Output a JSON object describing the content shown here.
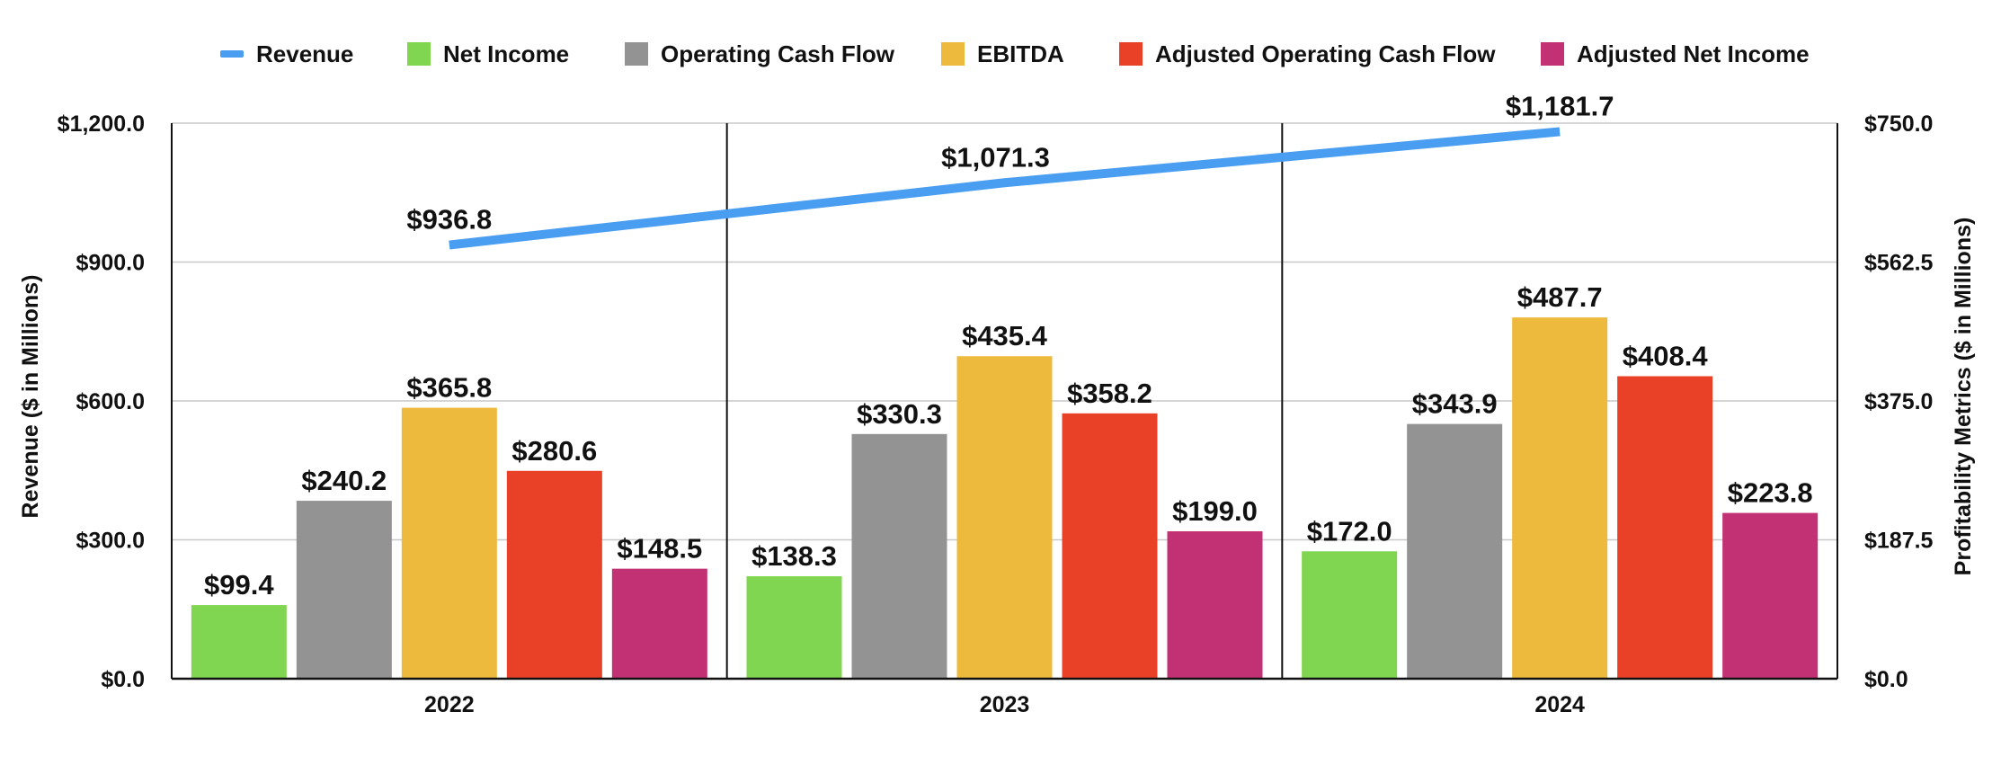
{
  "chart_data": {
    "type": "bar",
    "categories": [
      "2022",
      "2023",
      "2024"
    ],
    "series": [
      {
        "name": "Revenue",
        "type": "line",
        "axis": "left",
        "color": "#4A9EF2",
        "values": [
          936.8,
          1071.3,
          1181.7
        ],
        "labels": [
          "$936.8",
          "$1,071.3",
          "$1,181.7"
        ]
      },
      {
        "name": "Net Income",
        "type": "bar",
        "axis": "right",
        "color": "#80D651",
        "values": [
          99.4,
          138.3,
          172.0
        ],
        "labels": [
          "$99.4",
          "$138.3",
          "$172.0"
        ]
      },
      {
        "name": "Operating Cash Flow",
        "type": "bar",
        "axis": "right",
        "color": "#939393",
        "values": [
          240.2,
          330.3,
          343.9
        ],
        "labels": [
          "$240.2",
          "$330.3",
          "$343.9"
        ]
      },
      {
        "name": "EBITDA",
        "type": "bar",
        "axis": "right",
        "color": "#EEBA3E",
        "values": [
          365.8,
          435.4,
          487.7
        ],
        "labels": [
          "$365.8",
          "$435.4",
          "$487.7"
        ]
      },
      {
        "name": "Adjusted Operating Cash Flow",
        "type": "bar",
        "axis": "right",
        "color": "#E94128",
        "values": [
          280.6,
          358.2,
          408.4
        ],
        "labels": [
          "$280.6",
          "$358.2",
          "$408.4"
        ]
      },
      {
        "name": "Adjusted Net Income",
        "type": "bar",
        "axis": "right",
        "color": "#C23174",
        "values": [
          148.5,
          199.0,
          223.8
        ],
        "labels": [
          "$148.5",
          "$199.0",
          "$223.8"
        ]
      }
    ],
    "y_left": {
      "label": "Revenue ($ in Millions)",
      "range": [
        0,
        1200
      ],
      "ticks": [
        0,
        300,
        600,
        900,
        1200
      ],
      "tick_labels": [
        "$0.0",
        "$300.0",
        "$600.0",
        "$900.0",
        "$1,200.0"
      ]
    },
    "y_right": {
      "label": "Profitability Metrics ($ in Millions)",
      "range": [
        0,
        750
      ],
      "ticks": [
        0,
        187.5,
        375,
        562.5,
        750
      ],
      "tick_labels": [
        "$0.0",
        "$187.5",
        "$375.0",
        "$562.5",
        "$750.0"
      ]
    },
    "legend_position": "top",
    "grid": true
  }
}
